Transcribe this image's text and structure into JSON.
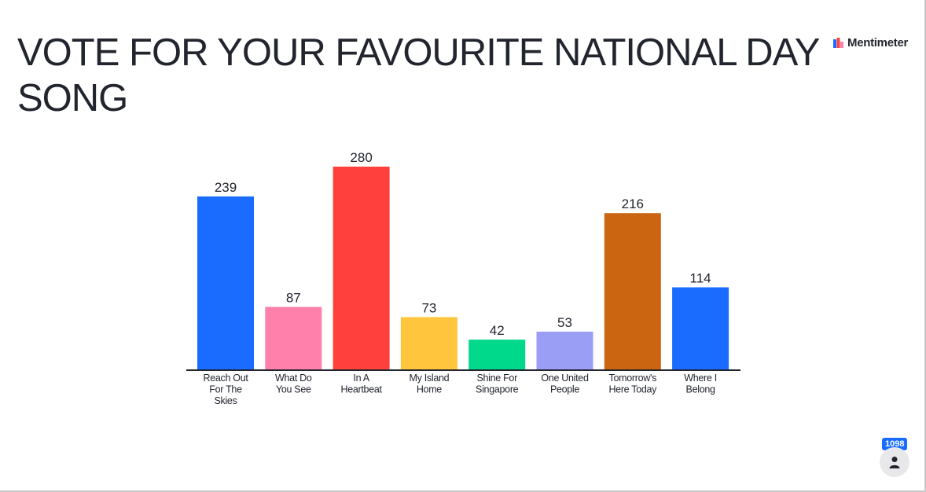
{
  "title": "VOTE FOR YOUR FAVOURITE NATIONAL DAY SONG",
  "brand": {
    "name": "Mentimeter"
  },
  "participants": {
    "count": "1098",
    "icon": "person-icon"
  },
  "chart_data": {
    "type": "bar",
    "categories": [
      "Reach Out For The Skies",
      "What Do You See",
      "In A Heartbeat",
      "My Island Home",
      "Shine For Singapore",
      "One United People",
      "Tomorrow's Here Today",
      "Where I Belong"
    ],
    "category_lines": [
      [
        "Reach Out",
        "For The",
        "Skies"
      ],
      [
        "What Do",
        "You See"
      ],
      [
        "In A",
        "Heartbeat"
      ],
      [
        "My Island",
        "Home"
      ],
      [
        "Shine For",
        "Singapore"
      ],
      [
        "One United",
        "People"
      ],
      [
        "Tomorrow's",
        "Here Today"
      ],
      [
        "Where I",
        "Belong"
      ]
    ],
    "values": [
      239,
      87,
      280,
      73,
      42,
      53,
      216,
      114
    ],
    "colors": [
      "#196cff",
      "#ff80ab",
      "#ff403d",
      "#ffc53d",
      "#00d98b",
      "#9b9ef5",
      "#cc6511",
      "#196cff"
    ],
    "ylim": [
      0,
      280
    ],
    "grid": false,
    "legend": "none"
  }
}
